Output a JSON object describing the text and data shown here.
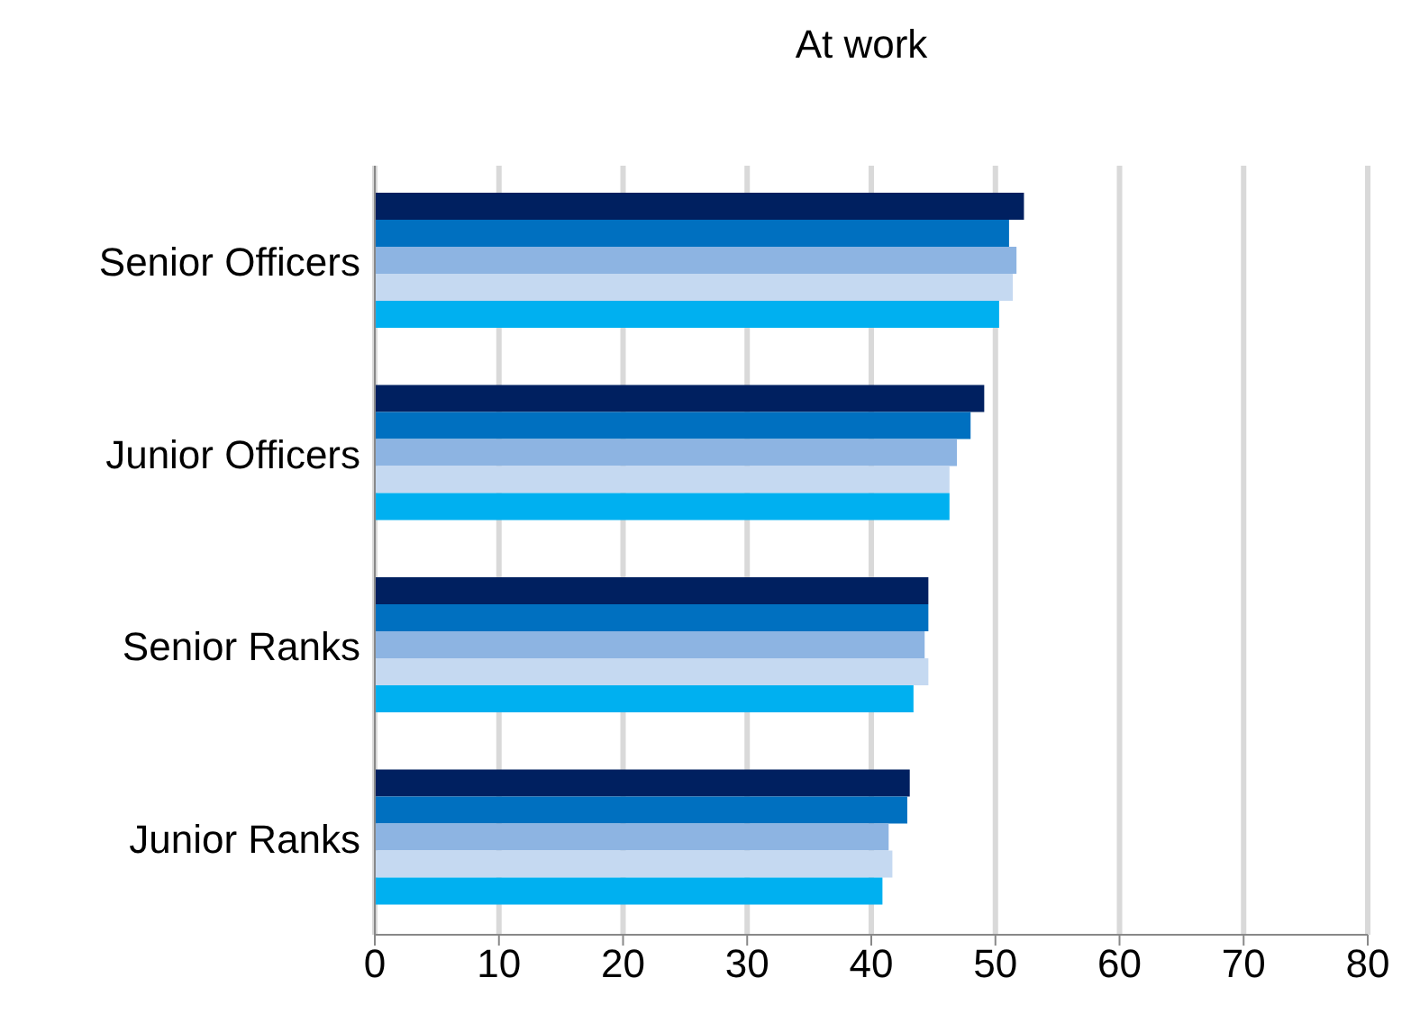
{
  "chart_data": {
    "type": "bar",
    "orientation": "horizontal",
    "title": "At work",
    "categories": [
      "Senior Officers",
      "Junior Officers",
      "Senior Ranks",
      "Junior Ranks"
    ],
    "series": [
      {
        "color": "#002060",
        "values": [
          52.3,
          49.1,
          44.6,
          43.1
        ]
      },
      {
        "color": "#0070c0",
        "values": [
          51.1,
          48.0,
          44.6,
          42.9
        ]
      },
      {
        "color": "#8db4e2",
        "values": [
          51.7,
          46.9,
          44.3,
          41.4
        ]
      },
      {
        "color": "#c5d9f1",
        "values": [
          51.4,
          46.3,
          44.6,
          41.7
        ]
      },
      {
        "color": "#00b0f0",
        "values": [
          50.3,
          46.3,
          43.4,
          40.9
        ]
      }
    ],
    "xlim": [
      0,
      80
    ],
    "xticks": [
      0,
      10,
      20,
      30,
      40,
      50,
      60,
      70,
      80
    ],
    "grid": "x"
  }
}
